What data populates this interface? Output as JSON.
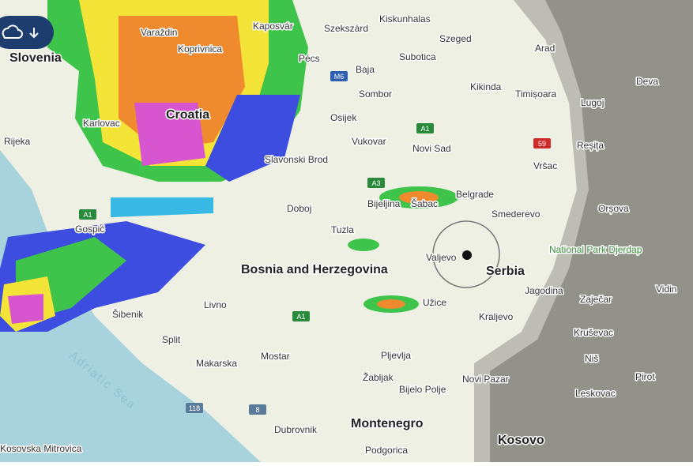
{
  "places": [
    "Slovenia",
    "Koprivnica",
    "Varaždin",
    "Kaposvár",
    "Szekszárd",
    "Kiskunhalas",
    "Szeged",
    "Arad",
    "Pécs",
    "Baja",
    "Subotica",
    "Kikinda",
    "Timișoara",
    "Deva",
    "Lugoj",
    "Sombor",
    "Osijek",
    "Croatia",
    "Rijeka",
    "Karlovac",
    "Vukovar",
    "Novi Sad",
    "Reșița",
    "Slavonski Brod",
    "Vršac",
    "Bijeljina",
    "Šabac",
    "Belgrade",
    "Smederevo",
    "Orșova",
    "Doboj",
    "Tuzla",
    "Valjevo",
    "Serbia",
    "National Park Djerdap",
    "Bosnia and Herzegovina",
    "Jagodina",
    "Vidin",
    "Livno",
    "Užice",
    "Zaječar",
    "Šibenik",
    "Kraljevo",
    "Split",
    "Kruševac",
    "Mostar",
    "Niš",
    "Makarska",
    "Pljevlja",
    "Pirot",
    "Žabljak",
    "Bijelo Polje",
    "Novi Pazar",
    "Leskovac",
    "Montenegro",
    "Dubrovnik",
    "Kosovo",
    "Podgorica",
    "Adriatic Sea",
    "Gospić",
    "Kosovska Mitrovica"
  ],
  "roads": [
    "M6",
    "A1",
    "59",
    "A3",
    "A1",
    "118",
    "8",
    "A1"
  ]
}
